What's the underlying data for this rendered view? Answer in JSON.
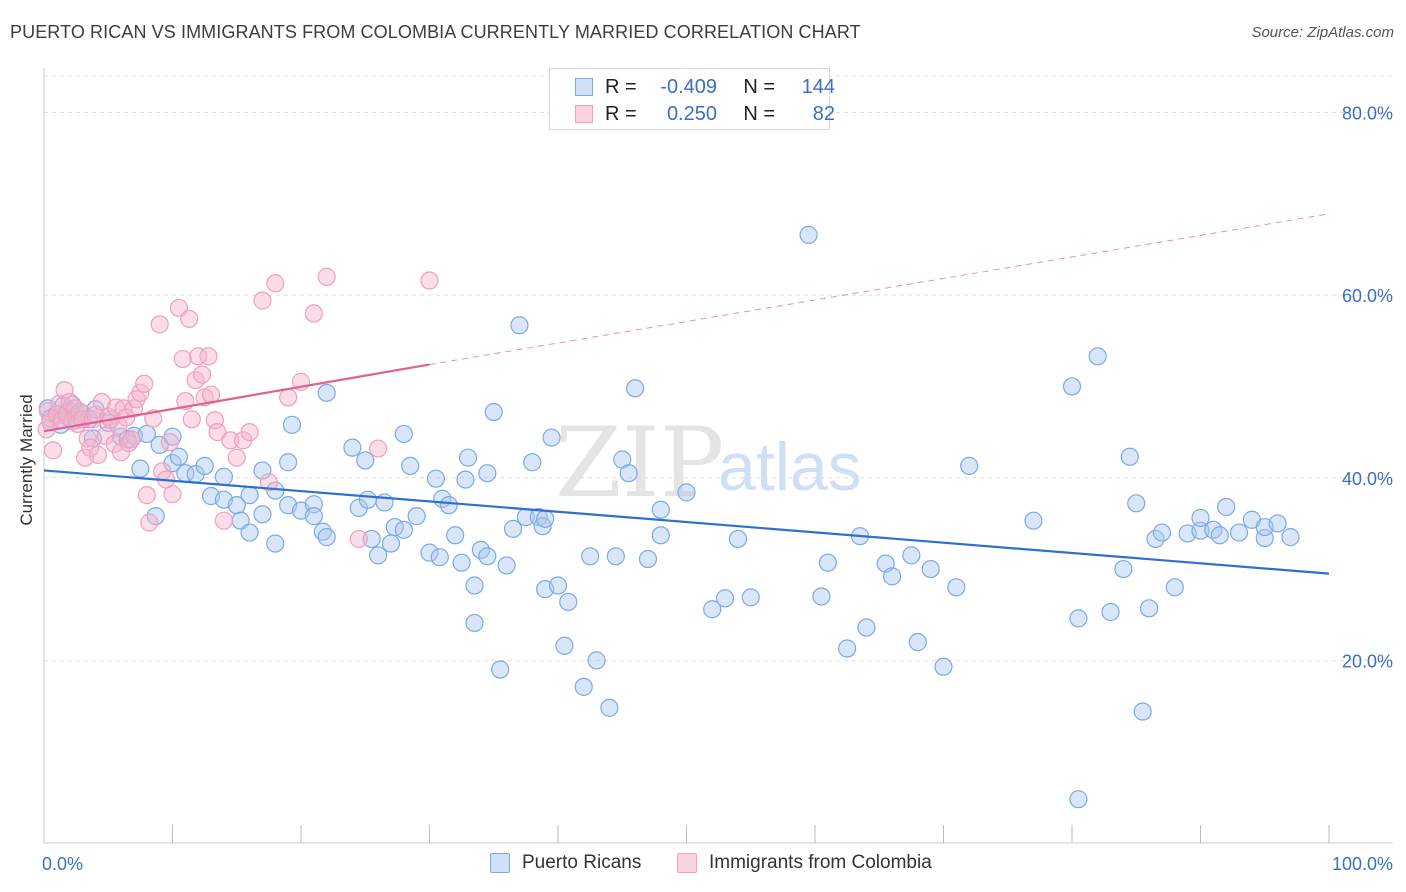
{
  "title": "PUERTO RICAN VS IMMIGRANTS FROM COLOMBIA CURRENTLY MARRIED CORRELATION CHART",
  "source": "Source: ZipAtlas.com",
  "watermark": {
    "zip": "ZIP",
    "atlas": "atlas"
  },
  "legend_top": [
    {
      "r_label": "R =",
      "r_value": "-0.409",
      "n_label": "N =",
      "n_value": "144",
      "color": "#7aaae6"
    },
    {
      "r_label": "R =",
      "r_value": "0.250",
      "n_label": "N =",
      "n_value": "82",
      "color": "#f0a0bc"
    }
  ],
  "legend_bottom": [
    {
      "label": "Puerto Ricans",
      "color": "#7aaae6"
    },
    {
      "label": "Immigrants from Colombia",
      "color": "#f0a0bc"
    }
  ],
  "chart_data": {
    "type": "scatter",
    "title": "PUERTO RICAN VS IMMIGRANTS FROM COLOMBIA CURRENTLY MARRIED CORRELATION CHART",
    "xlabel": "",
    "ylabel": "Currently Married",
    "xlim": [
      0,
      100
    ],
    "ylim": [
      0,
      84
    ],
    "x_tick_labels": [
      "0.0%",
      "100.0%"
    ],
    "y_ticks": [
      20,
      40,
      60,
      80
    ],
    "y_tick_labels": [
      "20.0%",
      "40.0%",
      "60.0%",
      "80.0%"
    ],
    "grid": true,
    "legend_position": "top-center",
    "series": [
      {
        "name": "Puerto Ricans",
        "color": "#7aaae6",
        "line_color": "#2f6fd0",
        "trend": {
          "x": [
            0,
            100
          ],
          "y": [
            40.8,
            29.5
          ]
        },
        "points": [
          [
            0.3,
            47.6
          ],
          [
            0.5,
            46.5
          ],
          [
            1,
            47
          ],
          [
            1.3,
            45.8
          ],
          [
            1.5,
            47.9
          ],
          [
            1.8,
            46.7
          ],
          [
            2,
            47.3
          ],
          [
            2.2,
            48
          ],
          [
            2.5,
            46.3
          ],
          [
            3,
            47
          ],
          [
            3.5,
            46.4
          ],
          [
            4,
            47.5
          ],
          [
            3.8,
            44.3
          ],
          [
            5,
            46
          ],
          [
            6,
            44.5
          ],
          [
            6.5,
            44.2
          ],
          [
            7,
            44.6
          ],
          [
            8,
            44.8
          ],
          [
            9,
            43.6
          ],
          [
            10,
            44.5
          ],
          [
            7.5,
            41
          ],
          [
            8.7,
            35.8
          ],
          [
            10,
            41.6
          ],
          [
            10.5,
            42.3
          ],
          [
            11,
            40.5
          ],
          [
            11.8,
            40.4
          ],
          [
            12.5,
            41.3
          ],
          [
            13,
            38
          ],
          [
            14,
            40.1
          ],
          [
            14,
            37.6
          ],
          [
            15,
            37
          ],
          [
            15.3,
            35.3
          ],
          [
            16,
            38.1
          ],
          [
            16,
            34
          ],
          [
            17,
            36
          ],
          [
            17,
            40.8
          ],
          [
            18,
            38.6
          ],
          [
            18,
            32.8
          ],
          [
            19,
            37
          ],
          [
            19,
            41.7
          ],
          [
            19.3,
            45.8
          ],
          [
            20,
            36.4
          ],
          [
            21,
            37.1
          ],
          [
            21,
            35.8
          ],
          [
            21.7,
            34.1
          ],
          [
            22,
            49.3
          ],
          [
            22,
            33.5
          ],
          [
            24,
            43.3
          ],
          [
            24.5,
            36.7
          ],
          [
            25,
            41.9
          ],
          [
            25.2,
            37.6
          ],
          [
            25.5,
            33.3
          ],
          [
            26,
            31.5
          ],
          [
            26.5,
            37.3
          ],
          [
            27,
            32.8
          ],
          [
            27.3,
            34.6
          ],
          [
            28,
            34.3
          ],
          [
            28,
            44.8
          ],
          [
            28.5,
            41.3
          ],
          [
            29,
            35.8
          ],
          [
            30,
            31.8
          ],
          [
            30.5,
            39.9
          ],
          [
            30.8,
            31.3
          ],
          [
            31,
            37.7
          ],
          [
            31.5,
            37
          ],
          [
            32,
            33.7
          ],
          [
            32.5,
            30.7
          ],
          [
            32.8,
            39.8
          ],
          [
            33,
            42.2
          ],
          [
            33.5,
            28.2
          ],
          [
            33.5,
            24.1
          ],
          [
            34,
            32.1
          ],
          [
            34.5,
            31.4
          ],
          [
            34.5,
            40.5
          ],
          [
            35,
            47.2
          ],
          [
            35.5,
            19
          ],
          [
            36,
            30.4
          ],
          [
            36.5,
            34.4
          ],
          [
            37,
            56.7
          ],
          [
            37.5,
            35.7
          ],
          [
            38,
            41.7
          ],
          [
            38.5,
            35.7
          ],
          [
            38.8,
            34.7
          ],
          [
            39,
            27.8
          ],
          [
            39,
            35.5
          ],
          [
            39.5,
            44.4
          ],
          [
            40,
            28.2
          ],
          [
            40.5,
            21.6
          ],
          [
            40.8,
            26.4
          ],
          [
            42,
            17.1
          ],
          [
            42.5,
            31.4
          ],
          [
            43,
            20
          ],
          [
            44,
            14.8
          ],
          [
            44.5,
            31.4
          ],
          [
            45,
            42
          ],
          [
            45.5,
            40.5
          ],
          [
            46,
            49.8
          ],
          [
            47,
            31.1
          ],
          [
            48,
            33.7
          ],
          [
            48,
            36.5
          ],
          [
            50,
            38.4
          ],
          [
            52,
            25.6
          ],
          [
            53,
            26.8
          ],
          [
            54,
            33.3
          ],
          [
            55,
            26.9
          ],
          [
            59.5,
            66.6
          ],
          [
            60.5,
            27
          ],
          [
            61,
            30.7
          ],
          [
            62.5,
            21.3
          ],
          [
            63.5,
            33.6
          ],
          [
            64,
            23.6
          ],
          [
            65.5,
            30.6
          ],
          [
            66,
            29.2
          ],
          [
            67.5,
            31.5
          ],
          [
            68,
            22
          ],
          [
            69,
            30
          ],
          [
            70,
            19.3
          ],
          [
            71,
            28
          ],
          [
            72,
            41.3
          ],
          [
            77,
            35.3
          ],
          [
            80,
            50
          ],
          [
            80.5,
            24.6
          ],
          [
            80.5,
            4.8
          ],
          [
            82,
            53.3
          ],
          [
            83,
            25.3
          ],
          [
            84,
            30
          ],
          [
            84.5,
            42.3
          ],
          [
            85,
            37.2
          ],
          [
            85.5,
            14.4
          ],
          [
            86,
            25.7
          ],
          [
            86.5,
            33.3
          ],
          [
            87,
            34
          ],
          [
            88,
            28
          ],
          [
            89,
            33.9
          ],
          [
            90,
            34.2
          ],
          [
            90,
            35.6
          ],
          [
            91,
            34.3
          ],
          [
            91.5,
            33.7
          ],
          [
            92,
            36.8
          ],
          [
            93,
            34
          ],
          [
            94,
            35.4
          ],
          [
            95,
            33.4
          ],
          [
            95,
            34.6
          ],
          [
            96,
            35
          ],
          [
            97,
            33.5
          ]
        ]
      },
      {
        "name": "Immigrants from Colombia",
        "color": "#f0a0bc",
        "line_color": "#e06090",
        "trend": {
          "x": [
            0,
            30
          ],
          "y": [
            45.1,
            52.4
          ]
        },
        "trend_extended": {
          "x": [
            30,
            100
          ],
          "y": [
            52.4,
            68.9
          ]
        },
        "points": [
          [
            0.2,
            45.3
          ],
          [
            0.3,
            47.3
          ],
          [
            0.5,
            46.1
          ],
          [
            0.7,
            43
          ],
          [
            1,
            46.9
          ],
          [
            1.2,
            48.1
          ],
          [
            1.4,
            46.3
          ],
          [
            1.6,
            49.6
          ],
          [
            1.8,
            47.1
          ],
          [
            2,
            48.3
          ],
          [
            2.2,
            46.2
          ],
          [
            2.4,
            47.6
          ],
          [
            2.6,
            45.9
          ],
          [
            2.8,
            47.2
          ],
          [
            3,
            46.4
          ],
          [
            3.2,
            42.2
          ],
          [
            3.4,
            44.3
          ],
          [
            3.6,
            43.3
          ],
          [
            3.8,
            46.4
          ],
          [
            4,
            46.9
          ],
          [
            4.2,
            42.5
          ],
          [
            4.5,
            48.3
          ],
          [
            4.8,
            44.6
          ],
          [
            5,
            46.7
          ],
          [
            5.2,
            46.4
          ],
          [
            5.5,
            43.7
          ],
          [
            5.6,
            47.7
          ],
          [
            5.8,
            45.7
          ],
          [
            6,
            42.8
          ],
          [
            6.2,
            47.6
          ],
          [
            6.4,
            46.6
          ],
          [
            6.6,
            43.8
          ],
          [
            6.8,
            44.2
          ],
          [
            7,
            47.6
          ],
          [
            7.2,
            48.6
          ],
          [
            7.5,
            49.3
          ],
          [
            7.8,
            50.3
          ],
          [
            8,
            38.1
          ],
          [
            8.2,
            35.1
          ],
          [
            8.5,
            46.5
          ],
          [
            9,
            56.8
          ],
          [
            9.2,
            40.7
          ],
          [
            9.5,
            39.8
          ],
          [
            9.8,
            43.9
          ],
          [
            10,
            38.2
          ],
          [
            10.5,
            58.6
          ],
          [
            10.8,
            53
          ],
          [
            11,
            48.4
          ],
          [
            11.3,
            57.4
          ],
          [
            11.5,
            46.4
          ],
          [
            11.8,
            50.7
          ],
          [
            12,
            53.3
          ],
          [
            12.3,
            51.3
          ],
          [
            12.5,
            48.8
          ],
          [
            12.8,
            53.3
          ],
          [
            13,
            49.1
          ],
          [
            13.3,
            46.3
          ],
          [
            13.5,
            45
          ],
          [
            14,
            35.3
          ],
          [
            14.5,
            44.1
          ],
          [
            15,
            42.2
          ],
          [
            15.5,
            44.1
          ],
          [
            16,
            45
          ],
          [
            17,
            59.4
          ],
          [
            17.5,
            39.5
          ],
          [
            18,
            61.3
          ],
          [
            19,
            48.8
          ],
          [
            20,
            50.5
          ],
          [
            21,
            58
          ],
          [
            22,
            62
          ],
          [
            24.5,
            33.3
          ],
          [
            26,
            43.2
          ],
          [
            30,
            61.6
          ]
        ]
      }
    ]
  }
}
